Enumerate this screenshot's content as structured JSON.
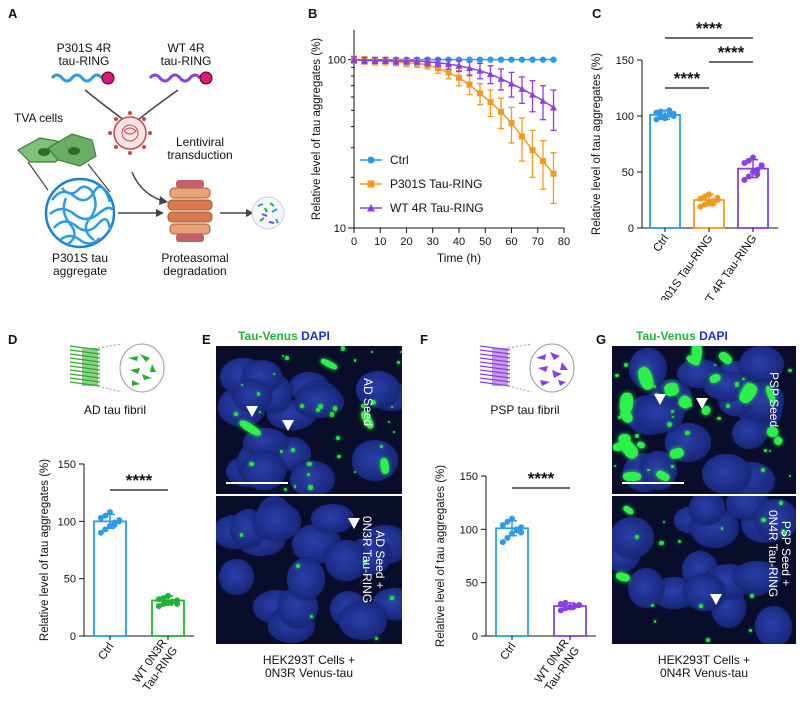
{
  "panels": {
    "A": {
      "letter": "A",
      "p301s_label_1": "P301S  4R",
      "p301s_label_2": "tau-RING",
      "wt_label_1": "WT 4R",
      "wt_label_2": "tau-RING",
      "tva_label": "TVA cells",
      "lentiviral_1": "Lentiviral",
      "lentiviral_2": "transduction",
      "aggregate_1": "P301S tau",
      "aggregate_2": "aggregate",
      "proteasomal_1": "Proteasomal",
      "proteasomal_2": "degradation"
    },
    "B": {
      "letter": "B"
    },
    "C": {
      "letter": "C"
    },
    "D": {
      "letter": "D",
      "fibril_label": "AD tau fibril"
    },
    "E": {
      "letter": "E",
      "title_green": "Tau-Venus",
      "title_blue": "DAPI",
      "top_label": "AD Seed",
      "bottom_label_1": "AD Seed +",
      "bottom_label_2": "0N3R Tau-RING",
      "caption_1": "HEK293T Cells +",
      "caption_2": "0N3R Venus-tau"
    },
    "F": {
      "letter": "F",
      "fibril_label": "PSP tau fibril"
    },
    "G": {
      "letter": "G",
      "title_green": "Tau-Venus",
      "title_blue": "DAPI",
      "top_label": "PSP Seed",
      "bottom_label_1": "PSP Seed +",
      "bottom_label_2": "0N4R Tau-RING",
      "caption_1": "HEK293T Cells +",
      "caption_2": "0N4R Venus-tau"
    }
  },
  "colors": {
    "ctrl": "#2b9be8",
    "p301s": "#f39a1e",
    "wt": "#8a3fe0",
    "green": "#1fb336",
    "purple": "#8a3fe0"
  },
  "chart_data": [
    {
      "id": "B",
      "type": "line",
      "xlabel": "Time (h)",
      "ylabel": "Relative level of tau aggregates (%)",
      "xlim": [
        0,
        80
      ],
      "ylim": [
        10,
        150
      ],
      "yscale": "log",
      "xticks": [
        0,
        10,
        20,
        30,
        40,
        50,
        60,
        70,
        80
      ],
      "yticks": [
        10,
        100
      ],
      "legend_placement": "bottom-left",
      "series": [
        {
          "name": "Ctrl",
          "x": [
            0,
            4,
            8,
            12,
            16,
            20,
            24,
            28,
            32,
            36,
            40,
            44,
            48,
            52,
            56,
            60,
            64,
            68,
            72,
            76
          ],
          "y": [
            100,
            100,
            100,
            100,
            100,
            100,
            100,
            100,
            100,
            100,
            100,
            100,
            100,
            100,
            100,
            100,
            100,
            100,
            100,
            100
          ],
          "err": [
            0,
            0,
            0,
            0,
            0,
            0,
            0,
            0,
            0,
            0,
            0,
            0,
            0,
            0,
            0,
            0,
            0,
            0,
            0,
            0
          ]
        },
        {
          "name": "P301S Tau-RING",
          "x": [
            0,
            4,
            8,
            12,
            16,
            20,
            24,
            28,
            32,
            36,
            40,
            44,
            48,
            52,
            56,
            60,
            64,
            68,
            72,
            76
          ],
          "y": [
            100,
            99,
            98,
            98,
            97,
            96,
            95,
            93,
            89,
            84,
            78,
            71,
            63,
            56,
            49,
            42,
            35,
            29,
            25,
            21
          ],
          "err": [
            5,
            5,
            5,
            5,
            5,
            5,
            5,
            5,
            6,
            7,
            8,
            9,
            9,
            10,
            10,
            10,
            10,
            9,
            8,
            7
          ]
        },
        {
          "name": "WT 4R Tau-RING",
          "x": [
            0,
            4,
            8,
            12,
            16,
            20,
            24,
            28,
            32,
            36,
            40,
            44,
            48,
            52,
            56,
            60,
            64,
            68,
            72,
            76
          ],
          "y": [
            100,
            99,
            99,
            99,
            98,
            98,
            98,
            97,
            96,
            94,
            92,
            89,
            86,
            82,
            77,
            72,
            67,
            62,
            57,
            52
          ],
          "err": [
            4,
            4,
            4,
            4,
            4,
            4,
            4,
            5,
            5,
            6,
            7,
            8,
            9,
            10,
            11,
            12,
            12,
            13,
            13,
            14
          ]
        }
      ]
    },
    {
      "id": "C",
      "type": "bar",
      "ylabel": "Relative level of tau aggregates (%)",
      "ylim": [
        0,
        150
      ],
      "yticks": [
        0,
        50,
        100,
        150
      ],
      "categories": [
        "Ctrl",
        "P301S Tau-RING",
        "WT 4R Tau-RING"
      ],
      "values": [
        101,
        25,
        53
      ],
      "errors": [
        4,
        5,
        8
      ],
      "points": [
        [
          97,
          99,
          100,
          101,
          102,
          103,
          104,
          98,
          105,
          100
        ],
        [
          19,
          21,
          23,
          24,
          25,
          26,
          28,
          30,
          22,
          27
        ],
        [
          43,
          46,
          50,
          52,
          55,
          58,
          60,
          63,
          48,
          56
        ]
      ],
      "significance": [
        {
          "from": 0,
          "to": 1,
          "label": "****"
        },
        {
          "from": 1,
          "to": 2,
          "label": "****"
        },
        {
          "from": 0,
          "to": 2,
          "label": "****"
        }
      ]
    },
    {
      "id": "D",
      "type": "bar",
      "ylabel": "Relative level of tau aggregates (%)",
      "ylim": [
        0,
        150
      ],
      "yticks": [
        0,
        50,
        100,
        150
      ],
      "categories": [
        "Ctrl",
        "WT 0N3R Tau-RING"
      ],
      "category_lines": [
        [
          "Ctrl"
        ],
        [
          "WT 0N3R",
          "Tau-RING"
        ]
      ],
      "values": [
        100,
        31
      ],
      "errors": [
        6,
        4
      ],
      "points": [
        [
          90,
          93,
          96,
          99,
          101,
          103,
          105,
          108,
          97,
          100
        ],
        [
          26,
          28,
          29,
          30,
          31,
          32,
          33,
          35,
          30,
          28
        ]
      ],
      "significance": [
        {
          "from": 0,
          "to": 1,
          "label": "****"
        }
      ]
    },
    {
      "id": "F",
      "type": "bar",
      "ylabel": "Relative level of tau aggregates (%)",
      "ylim": [
        0,
        150
      ],
      "yticks": [
        0,
        50,
        100,
        150
      ],
      "categories": [
        "Ctrl",
        "WT 0N4R Tau-RING"
      ],
      "category_lines": [
        [
          "Ctrl"
        ],
        [
          "WT 0N4R",
          "Tau-RING"
        ]
      ],
      "values": [
        101,
        28
      ],
      "errors": [
        7,
        3
      ],
      "points": [
        [
          88,
          92,
          96,
          99,
          102,
          104,
          107,
          110,
          100,
          97
        ],
        [
          24,
          26,
          27,
          28,
          29,
          30,
          31,
          27,
          28,
          29
        ]
      ],
      "significance": [
        {
          "from": 0,
          "to": 1,
          "label": "****"
        }
      ]
    }
  ]
}
